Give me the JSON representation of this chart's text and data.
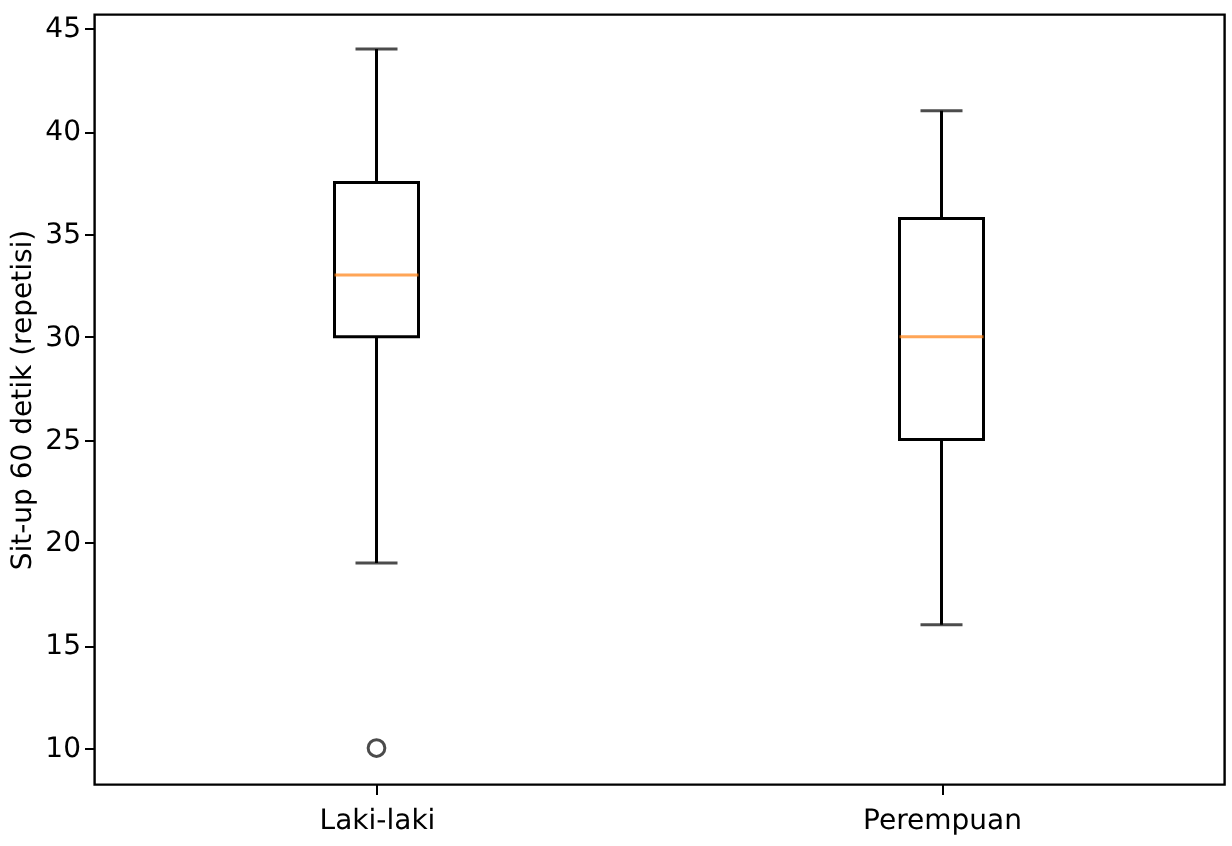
{
  "chart_data": {
    "type": "box",
    "ylabel": "Sit-up 60 detik (repetisi)",
    "categories": [
      "Laki-laki",
      "Perempuan"
    ],
    "boxes": [
      {
        "low": 19,
        "q1": 30,
        "median": 33,
        "q3": 37.5,
        "high": 44,
        "outliers": [
          10
        ]
      },
      {
        "low": 16,
        "q1": 25,
        "median": 30,
        "q3": 35.75,
        "high": 41
      }
    ],
    "ylim": [
      8.25,
      45.7
    ],
    "yticks": [
      10,
      15,
      20,
      25,
      30,
      35,
      40,
      45
    ],
    "grid": false
  }
}
